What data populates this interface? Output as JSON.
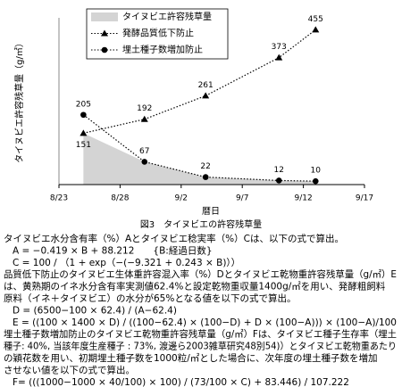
{
  "chart_data": {
    "type": "line",
    "y_label": "タイヌビエ許容残草量（g/㎡）",
    "x_label": "暦日",
    "x": [
      "8/25",
      "8/30",
      "9/4",
      "9/10",
      "9/13"
    ],
    "xlim": [
      "8/23",
      "9/17"
    ],
    "xticks": [
      "8/23",
      "8/28",
      "9/2",
      "9/7",
      "9/12",
      "9/17"
    ],
    "ylim": [
      0,
      490
    ],
    "legend": "upper left",
    "series": [
      {
        "name": "タイヌビエ許容残草量",
        "color": "#d4d4d4",
        "kind": "area",
        "values": [
          151,
          67,
          22,
          12,
          10
        ]
      },
      {
        "name": "発酵品質低下防止",
        "color": "#000000",
        "marker": "triangle",
        "values": [
          151,
          192,
          261,
          373,
          455
        ]
      },
      {
        "name": "埋土種子数増加防止",
        "color": "#000000",
        "marker": "circle",
        "values": [
          205,
          67,
          22,
          12,
          10
        ]
      }
    ]
  },
  "document": {
    "caption": "図3　タイヌビエの許容残草量",
    "lines": [
      "タイヌビエ水分含有率（%）Aとタイヌビエ稔実率（%）Cは、以下の式で算出。",
      "A = −0.419 × B + 88.212　　{B:経過日数}",
      "C = 100 / （1 + exp（−(−9.321 + 0.243 × B)））",
      "品質低下防止のタイヌビエ生体重許容混入率（%）Dとタイヌビエ乾物重許容残草量（g/㎡）E",
      "は、黄熟期のイネ水分含有率実測値62.4%と設定乾物重収量1400g/㎡を用い、発酵粗飼料",
      "原料（イネ＋タイヌビエ）の水分が65%となる値を以下の式で算出。",
      "D = (6500−100 × 62.4) / (A−62.4)",
      "E = ((100 × 1400 × D) / ((100−62.4) × (100−D) + D × (100−A))) × (100−A)/100",
      "埋土種子数増加防止のタイヌビエ乾物重許容残草量（g/㎡）Fは、タイヌビエ種子生存率（埋土",
      "種子: 40%, 当該年度生産種子 : 73%, 渡邊ら2003雑草研究48別54)）とタイヌビエ乾物重あたり",
      "の穎花数を用い、初期埋土種子数を1000粒/㎡とした場合に、次年度の埋土種子数を増加",
      "させない値を以下の式で算出。",
      "F= (((1000−1000 × 40/100) × 100) / (73/100 × C) + 83.446) / 107.222"
    ]
  }
}
